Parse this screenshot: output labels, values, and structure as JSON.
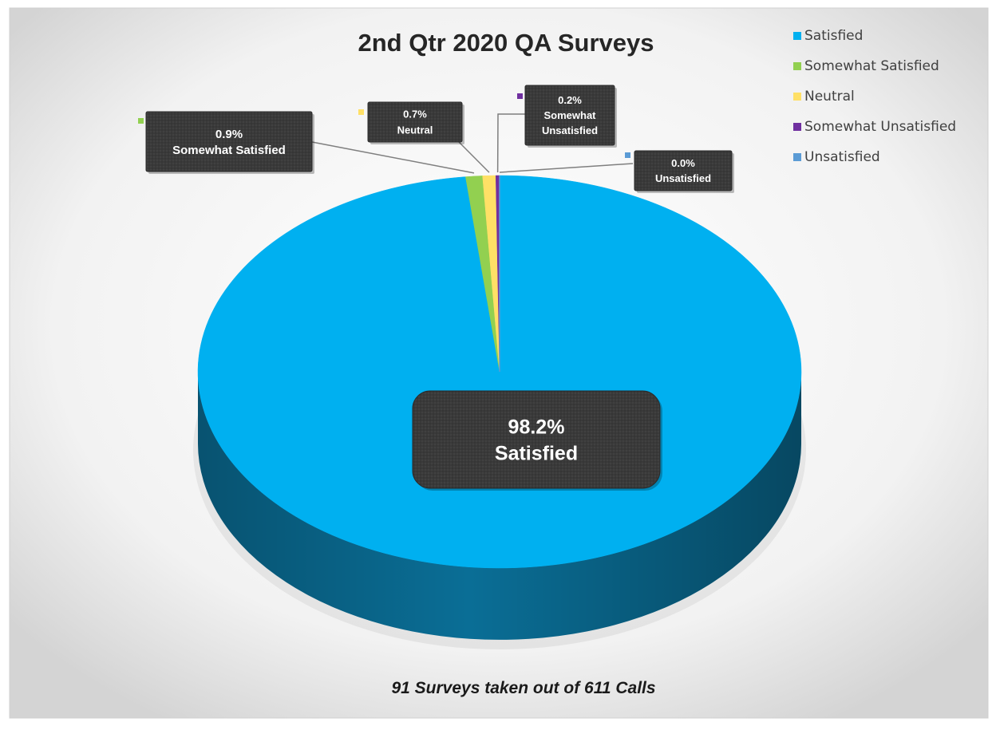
{
  "chart_data": {
    "type": "pie",
    "title": "2nd  Qtr 2020 QA Surveys",
    "caption": "91 Surveys taken out of 611 Calls",
    "legend_position": "top-right",
    "slices": [
      {
        "label": "Satisfied",
        "value": 98.2,
        "value_label": "98.2%",
        "color": "#00B0F0",
        "side_color": "#0A6E96",
        "callout_lines": [
          "Satisfied"
        ]
      },
      {
        "label": "Somewhat Satisfied",
        "value": 0.9,
        "value_label": "0.9%",
        "color": "#92D050",
        "side_color": "#5E8E2A",
        "callout_lines": [
          "Somewhat Satisfied"
        ]
      },
      {
        "label": "Neutral",
        "value": 0.7,
        "value_label": "0.7%",
        "color": "#FFE066",
        "side_color": "#B89B2E",
        "callout_lines": [
          "Neutral"
        ]
      },
      {
        "label": "Somewhat Unsatisfied",
        "value": 0.2,
        "value_label": "0.2%",
        "color": "#7030A0",
        "side_color": "#4A1E6E",
        "callout_lines": [
          "Somewhat",
          "Unsatisfied"
        ]
      },
      {
        "label": "Unsatisfied",
        "value": 0.0,
        "value_label": "0.0%",
        "color": "#5B9BD5",
        "side_color": "#3A6E9E",
        "callout_lines": [
          "Unsatisfied"
        ]
      }
    ]
  }
}
